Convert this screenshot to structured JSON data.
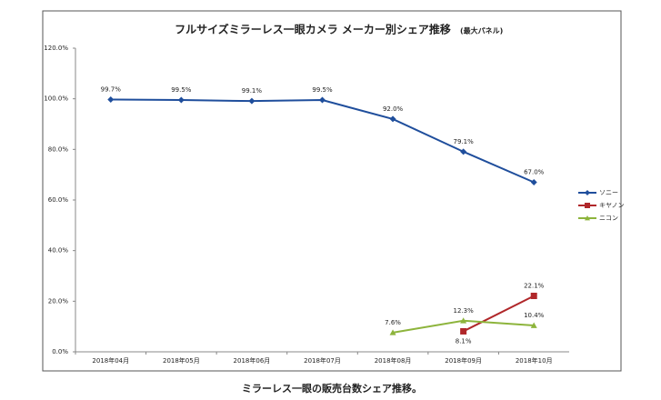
{
  "chart_data": {
    "type": "line",
    "title": "フルサイズミラーレス一眼カメラ メーカー別シェア推移",
    "subtitle": "(最大パネル)",
    "caption": "ミラーレス一眼の販売台数シェア推移。",
    "categories": [
      "2018年04月",
      "2018年05月",
      "2018年06月",
      "2018年07月",
      "2018年08月",
      "2018年09月",
      "2018年10月"
    ],
    "series": [
      {
        "name": "ソニー",
        "color": "#1f4e9c",
        "marker": "diamond",
        "values": [
          99.7,
          99.5,
          99.1,
          99.5,
          92.0,
          79.1,
          67.0
        ],
        "value_labels": [
          "99.7%",
          "99.5%",
          "99.1%",
          "99.5%",
          "92.0%",
          "79.1%",
          "67.0%"
        ]
      },
      {
        "name": "キヤノン",
        "color": "#b0272a",
        "marker": "square",
        "values": [
          null,
          null,
          null,
          null,
          null,
          8.1,
          22.1
        ],
        "value_labels": [
          null,
          null,
          null,
          null,
          null,
          "8.1%",
          "22.1%"
        ]
      },
      {
        "name": "ニコン",
        "color": "#8db43c",
        "marker": "triangle",
        "values": [
          null,
          null,
          null,
          null,
          7.6,
          12.3,
          10.4
        ],
        "value_labels": [
          null,
          null,
          null,
          null,
          "7.6%",
          "12.3%",
          "10.4%"
        ]
      }
    ],
    "ylim": [
      0,
      120
    ],
    "yticks": [
      {
        "value": 0,
        "label": "0.0%"
      },
      {
        "value": 20,
        "label": "20.0%"
      },
      {
        "value": 40,
        "label": "40.0%"
      },
      {
        "value": 60,
        "label": "60.0%"
      },
      {
        "value": 80,
        "label": "80.0%"
      },
      {
        "value": 100,
        "label": "100.0%"
      },
      {
        "value": 120,
        "label": "120.0%"
      }
    ],
    "legend": "right"
  }
}
